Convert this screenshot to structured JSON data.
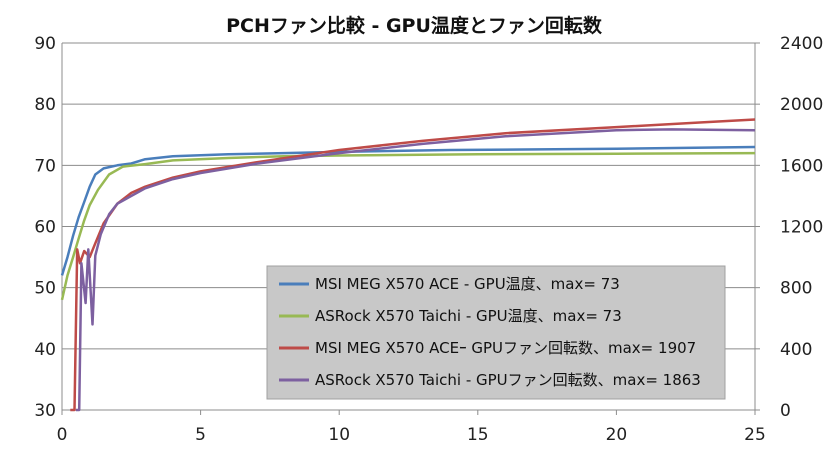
{
  "chart_data": {
    "type": "line",
    "title": "PCHファン比較 - GPU温度とファン回転数",
    "xlabel": "",
    "ylabel": "",
    "y2label": "",
    "xlim": [
      0,
      25
    ],
    "ylim": [
      30,
      90
    ],
    "y2lim": [
      0,
      2400
    ],
    "x_ticks": [
      "0",
      "5",
      "10",
      "15",
      "20",
      "25"
    ],
    "y_ticks": [
      "30",
      "40",
      "50",
      "60",
      "70",
      "80",
      "90"
    ],
    "y2_ticks": [
      "0",
      "400",
      "800",
      "1200",
      "1600",
      "2000",
      "2400"
    ],
    "grid": true,
    "legend_position": "bottom-right",
    "series": [
      {
        "name": "MSI MEG X570 ACE - GPU温度、max= 73",
        "axis": "left",
        "color": "#4a7ebb",
        "points": [
          [
            0,
            52
          ],
          [
            0.2,
            55
          ],
          [
            0.4,
            58.5
          ],
          [
            0.6,
            61.5
          ],
          [
            0.8,
            64
          ],
          [
            1.0,
            66.5
          ],
          [
            1.2,
            68.5
          ],
          [
            1.5,
            69.5
          ],
          [
            2.0,
            70
          ],
          [
            2.5,
            70.3
          ],
          [
            3.0,
            71
          ],
          [
            4.0,
            71.5
          ],
          [
            6.0,
            71.8
          ],
          [
            8.0,
            72
          ],
          [
            10.0,
            72.2
          ],
          [
            14.0,
            72.5
          ],
          [
            20.0,
            72.7
          ],
          [
            25.0,
            73
          ]
        ]
      },
      {
        "name": "ASRock X570 Taichi - GPU温度、max= 73",
        "axis": "left",
        "color": "#98b954",
        "points": [
          [
            0,
            48
          ],
          [
            0.2,
            52
          ],
          [
            0.4,
            55
          ],
          [
            0.6,
            58
          ],
          [
            0.8,
            61
          ],
          [
            1.0,
            63.5
          ],
          [
            1.3,
            66
          ],
          [
            1.7,
            68.5
          ],
          [
            2.2,
            69.8
          ],
          [
            3.0,
            70.2
          ],
          [
            4.0,
            70.8
          ],
          [
            6.0,
            71.2
          ],
          [
            8.0,
            71.5
          ],
          [
            10.0,
            71.6
          ],
          [
            15.0,
            71.8
          ],
          [
            20.0,
            71.9
          ],
          [
            25.0,
            72
          ]
        ]
      },
      {
        "name": "MSI MEG X570 ACEｰ GPUファン回転数、max= 1907",
        "axis": "right",
        "color": "#be4b48",
        "points": [
          [
            0.3,
            0
          ],
          [
            0.45,
            0
          ],
          [
            0.55,
            1050
          ],
          [
            0.65,
            960
          ],
          [
            0.8,
            1040
          ],
          [
            1.0,
            1000
          ],
          [
            1.2,
            1090
          ],
          [
            1.5,
            1220
          ],
          [
            2.0,
            1350
          ],
          [
            2.5,
            1420
          ],
          [
            3.0,
            1460
          ],
          [
            4.0,
            1520
          ],
          [
            5.0,
            1560
          ],
          [
            7.0,
            1620
          ],
          [
            10.0,
            1700
          ],
          [
            13.0,
            1760
          ],
          [
            16.0,
            1810
          ],
          [
            20.0,
            1850
          ],
          [
            23.0,
            1880
          ],
          [
            25.0,
            1900
          ]
        ]
      },
      {
        "name": "ASRock X570 Taichi - GPUファン回転数、max= 1863",
        "axis": "right",
        "color": "#7d60a0",
        "points": [
          [
            0.5,
            0
          ],
          [
            0.62,
            0
          ],
          [
            0.7,
            960
          ],
          [
            0.85,
            700
          ],
          [
            0.95,
            1050
          ],
          [
            1.1,
            560
          ],
          [
            1.2,
            1010
          ],
          [
            1.4,
            1150
          ],
          [
            1.7,
            1280
          ],
          [
            2.0,
            1350
          ],
          [
            3.0,
            1450
          ],
          [
            4.0,
            1510
          ],
          [
            5.0,
            1550
          ],
          [
            7.0,
            1610
          ],
          [
            10.0,
            1680
          ],
          [
            13.0,
            1740
          ],
          [
            16.0,
            1790
          ],
          [
            20.0,
            1830
          ],
          [
            22.0,
            1835
          ],
          [
            25.0,
            1830
          ]
        ]
      }
    ]
  }
}
